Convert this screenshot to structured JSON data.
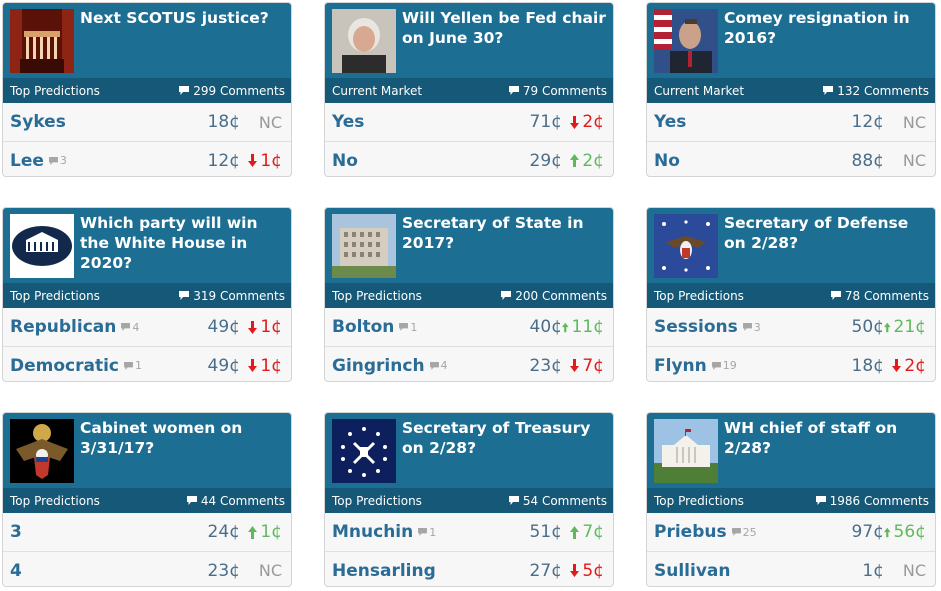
{
  "cards": [
    {
      "title": "Next SCOTUS justice?",
      "bar_label": "Top Predictions",
      "comments": "299 Comments",
      "image_icon": "supreme-court-icon",
      "rows": [
        {
          "name": "Sykes",
          "comment_count": "",
          "price": "18¢",
          "change": "NC",
          "direction": "none"
        },
        {
          "name": "Lee",
          "comment_count": "3",
          "price": "12¢",
          "change": "1¢",
          "direction": "down"
        }
      ]
    },
    {
      "title": "Will Yellen be Fed chair on June 30?",
      "bar_label": "Current Market",
      "comments": "79 Comments",
      "image_icon": "yellen-portrait-icon",
      "rows": [
        {
          "name": "Yes",
          "comment_count": "",
          "price": "71¢",
          "change": "2¢",
          "direction": "down"
        },
        {
          "name": "No",
          "comment_count": "",
          "price": "29¢",
          "change": "2¢",
          "direction": "up"
        }
      ]
    },
    {
      "title": "Comey resignation in 2016?",
      "bar_label": "Current Market",
      "comments": "132 Comments",
      "image_icon": "comey-portrait-icon",
      "rows": [
        {
          "name": "Yes",
          "comment_count": "",
          "price": "12¢",
          "change": "NC",
          "direction": "none"
        },
        {
          "name": "No",
          "comment_count": "",
          "price": "88¢",
          "change": "NC",
          "direction": "none"
        }
      ]
    },
    {
      "title": "Which party will win the White House in 2020?",
      "bar_label": "Top Predictions",
      "comments": "319 Comments",
      "image_icon": "white-house-logo-icon",
      "rows": [
        {
          "name": "Republican",
          "comment_count": "4",
          "price": "49¢",
          "change": "1¢",
          "direction": "down"
        },
        {
          "name": "Democratic",
          "comment_count": "1",
          "price": "49¢",
          "change": "1¢",
          "direction": "down"
        }
      ]
    },
    {
      "title": "Secretary of State in 2017?",
      "bar_label": "Top Predictions",
      "comments": "200 Comments",
      "image_icon": "state-department-building-icon",
      "rows": [
        {
          "name": "Bolton",
          "comment_count": "1",
          "price": "40¢",
          "change": "11¢",
          "direction": "up"
        },
        {
          "name": "Gingrinch",
          "comment_count": "4",
          "price": "23¢",
          "change": "7¢",
          "direction": "down"
        }
      ]
    },
    {
      "title": "Secretary of Defense on 2/28?",
      "bar_label": "Top Predictions",
      "comments": "78 Comments",
      "image_icon": "defense-flag-icon",
      "rows": [
        {
          "name": "Sessions",
          "comment_count": "3",
          "price": "50¢",
          "change": "21¢",
          "direction": "up"
        },
        {
          "name": "Flynn",
          "comment_count": "19",
          "price": "18¢",
          "change": "2¢",
          "direction": "down"
        }
      ]
    },
    {
      "title": "Cabinet women on 3/31/17?",
      "bar_label": "Top Predictions",
      "comments": "44 Comments",
      "image_icon": "presidential-seal-icon",
      "rows": [
        {
          "name": "3",
          "comment_count": "",
          "price": "24¢",
          "change": "1¢",
          "direction": "up"
        },
        {
          "name": "4",
          "comment_count": "",
          "price": "23¢",
          "change": "NC",
          "direction": "none"
        }
      ]
    },
    {
      "title": "Secretary of Treasury on 2/28?",
      "bar_label": "Top Predictions",
      "comments": "54 Comments",
      "image_icon": "treasury-flag-icon",
      "rows": [
        {
          "name": "Mnuchin",
          "comment_count": "1",
          "price": "51¢",
          "change": "7¢",
          "direction": "up"
        },
        {
          "name": "Hensarling",
          "comment_count": "",
          "price": "27¢",
          "change": "5¢",
          "direction": "down"
        }
      ]
    },
    {
      "title": "WH chief of staff on 2/28?",
      "bar_label": "Top Predictions",
      "comments": "1986 Comments",
      "image_icon": "white-house-photo-icon",
      "rows": [
        {
          "name": "Priebus",
          "comment_count": "25",
          "price": "97¢",
          "change": "56¢",
          "direction": "up"
        },
        {
          "name": "Sullivan",
          "comment_count": "",
          "price": "1¢",
          "change": "NC",
          "direction": "none"
        }
      ]
    }
  ]
}
